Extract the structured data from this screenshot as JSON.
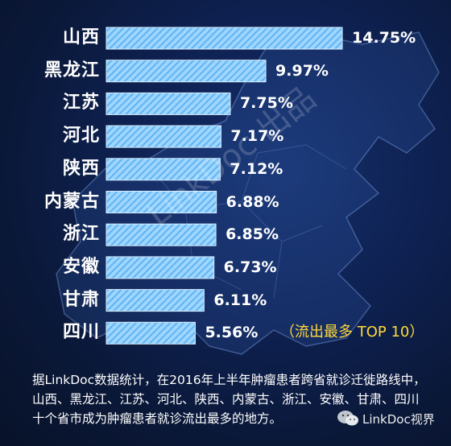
{
  "chart_data": {
    "type": "bar",
    "orientation": "horizontal",
    "categories": [
      "山西",
      "黑龙江",
      "江苏",
      "河北",
      "陕西",
      "内蒙古",
      "浙江",
      "安徽",
      "甘肃",
      "四川"
    ],
    "values": [
      14.75,
      9.97,
      7.75,
      7.17,
      7.12,
      6.88,
      6.85,
      6.73,
      6.11,
      5.56
    ],
    "value_labels": [
      "14.75%",
      "9.97%",
      "7.75%",
      "7.17%",
      "7.12%",
      "6.88%",
      "6.85%",
      "6.73%",
      "6.11%",
      "5.56%"
    ],
    "xlim": [
      0,
      14.75
    ],
    "bar_color": "#9fd6ff",
    "bar_stripe_color": "#5fb4f2",
    "annotation": "（流出最多 TOP 10）",
    "annotation_color": "#ffd93b",
    "grid": false,
    "legend": "none"
  },
  "watermark": "LinkDoc 出品",
  "caption": "据LinkDoc数据统计，在2016年上半年肿瘤患者跨省就诊迁徙路线中，山西、黑龙江、江苏、河北、陕西、内蒙古、浙江、安徽、甘肃、四川十个省市成为肿瘤患者就诊流出最多的地方。",
  "corner_watermark": {
    "icon": "wechat-icon",
    "text": "LinkDoc视界"
  },
  "colors": {
    "background": "#0e2152",
    "text": "#ffffff"
  }
}
